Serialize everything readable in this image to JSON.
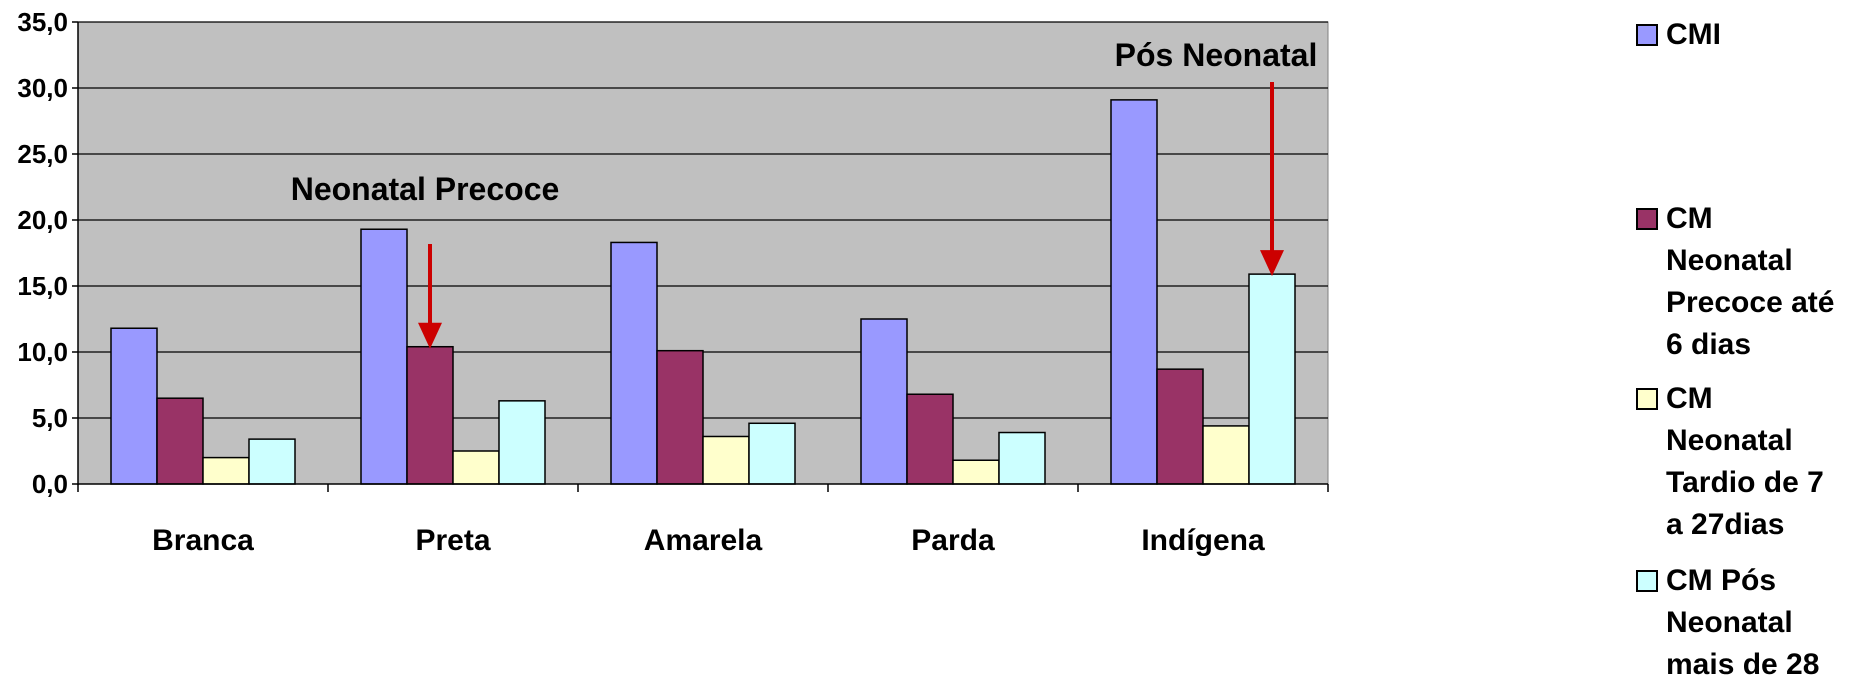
{
  "chart_data": {
    "type": "bar",
    "categories": [
      "Branca",
      "Preta",
      "Amarela",
      "Parda",
      "Indígena"
    ],
    "series": [
      {
        "name": "CMI",
        "values": [
          11.8,
          19.3,
          18.3,
          12.5,
          29.1
        ],
        "color": "#9999ff"
      },
      {
        "name": "CM Neonatal Precoce até 6 dias",
        "values": [
          6.5,
          10.4,
          10.1,
          6.8,
          8.7
        ],
        "color": "#993366"
      },
      {
        "name": "CM Neonatal Tardio de 7 a 27dias",
        "values": [
          2.0,
          2.5,
          3.6,
          1.8,
          4.4
        ],
        "color": "#ffffcc"
      },
      {
        "name": "CM Pós Neonatal mais de 28",
        "values": [
          3.4,
          6.3,
          4.6,
          3.9,
          15.9
        ],
        "color": "#ccffff"
      }
    ],
    "y_ticks": [
      "0,0",
      "5,0",
      "10,0",
      "15,0",
      "20,0",
      "25,0",
      "30,0",
      "35,0"
    ],
    "ylim": [
      0,
      35
    ],
    "grid": true,
    "plot_background": "#c0c0c0",
    "legend_position": "right",
    "annotations": [
      {
        "text": "Neonatal Precoce",
        "category": "Preta",
        "series_index": 1
      },
      {
        "text": "Pós Neonatal",
        "category": "Indígena",
        "series_index": 3
      }
    ],
    "arrow_color": "#cc0000"
  }
}
